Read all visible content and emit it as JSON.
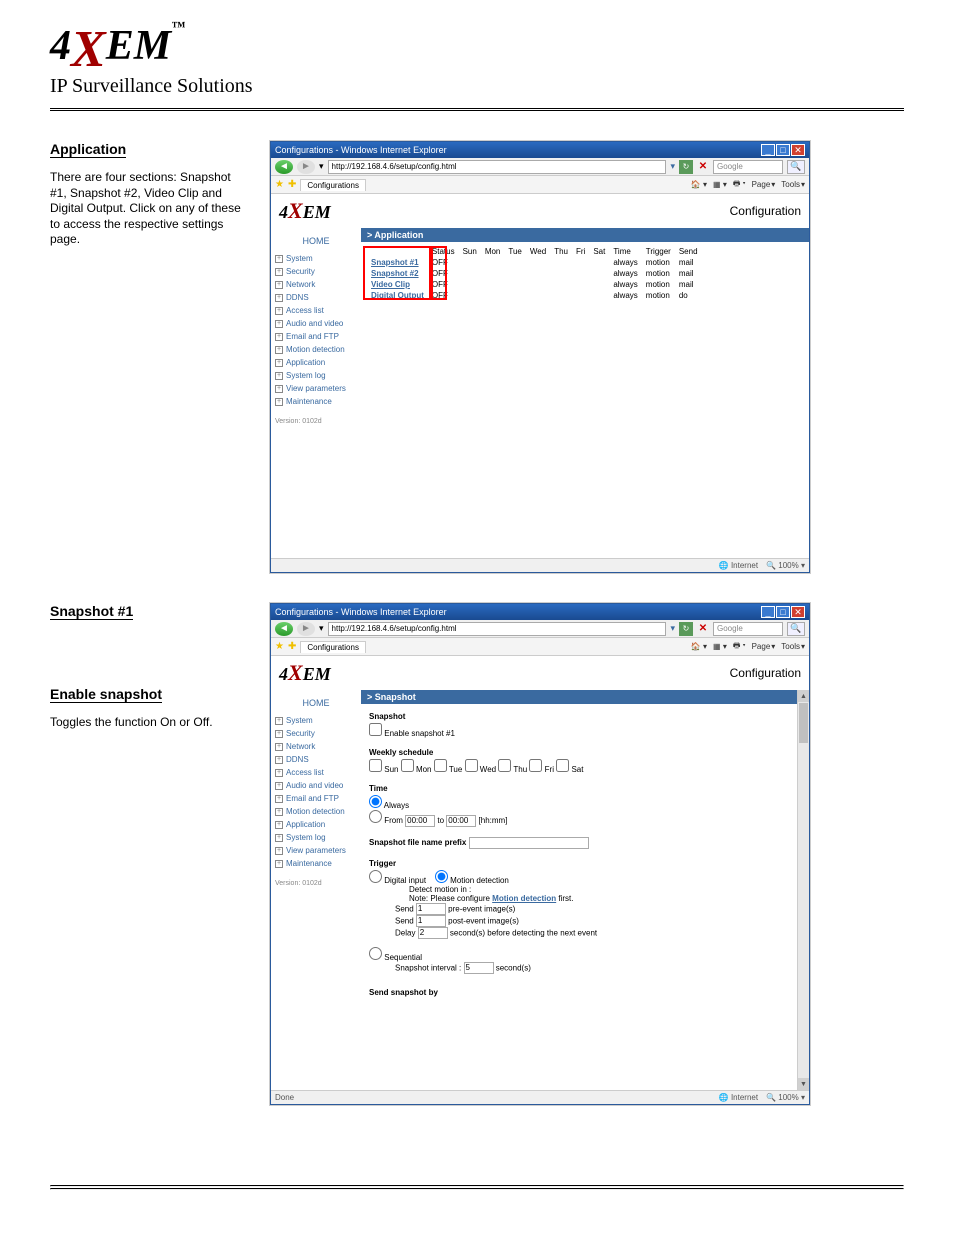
{
  "logo": {
    "pre": "4",
    "x": "X",
    "post": "EM",
    "tm": "™",
    "sub": "IP Surveillance Solutions"
  },
  "section1": {
    "title": "Application",
    "desc": "There are four sections: Snapshot #1, Snapshot #2, Video Clip and Digital Output. Click on any of these to access the respective settings page."
  },
  "section2a": {
    "title": "Snapshot #1"
  },
  "section2b": {
    "title": "Enable snapshot"
  },
  "section2desc": "Toggles the function On or Off.",
  "ie": {
    "title": "Configurations - Windows Internet Explorer",
    "url": "http://192.168.4.6/setup/config.html",
    "search_ph": "Google",
    "tab": "Configurations",
    "tools": {
      "home": "▾",
      "feed": "▾",
      "print": "▾",
      "page": "Page",
      "tools_l": "Tools"
    },
    "brand": {
      "pre": "4",
      "x": "X",
      "post": "EM"
    },
    "conf": "Configuration",
    "sidebar": {
      "home": "HOME",
      "items": [
        "System",
        "Security",
        "Network",
        "DDNS",
        "Access list",
        "Audio and video",
        "Email and FTP",
        "Motion detection",
        "Application",
        "System log",
        "View parameters",
        "Maintenance"
      ],
      "ver": "Version: 0102d"
    },
    "status": {
      "done": "Done",
      "zone": "Internet",
      "zoom": "100%"
    }
  },
  "app": {
    "crumb": "> Application",
    "headers": [
      "",
      "Status",
      "Sun",
      "Mon",
      "Tue",
      "Wed",
      "Thu",
      "Fri",
      "Sat",
      "Time",
      "Trigger",
      "Send"
    ],
    "rows": [
      {
        "name": "Snapshot #1",
        "status": "OFF",
        "time": "always",
        "trigger": "motion",
        "send": "mail"
      },
      {
        "name": "Snapshot #2",
        "status": "OFF",
        "time": "always",
        "trigger": "motion",
        "send": "mail"
      },
      {
        "name": "Video Clip",
        "status": "OFF",
        "time": "always",
        "trigger": "motion",
        "send": "mail"
      },
      {
        "name": "Digital Output",
        "status": "OFF",
        "time": "always",
        "trigger": "motion",
        "send": "do"
      }
    ]
  },
  "snap": {
    "crumb": "> Snapshot",
    "h_snapshot": "Snapshot",
    "cb_enable": "Enable snapshot #1",
    "h_weekly": "Weekly schedule",
    "days": [
      "Sun",
      "Mon",
      "Tue",
      "Wed",
      "Thu",
      "Fri",
      "Sat"
    ],
    "h_time": "Time",
    "r_always": "Always",
    "r_from": "From",
    "t_from": "00:00",
    "to": "to",
    "t_to": "00:00",
    "hhmm": "[hh:mm]",
    "prefix_l": "Snapshot file name prefix",
    "h_trigger": "Trigger",
    "r_di": "Digital input",
    "r_md": "Motion detection",
    "md_in": "Detect motion in :",
    "md_note_pre": "Note: Please configure ",
    "md_link": "Motion detection",
    "md_note_post": " first.",
    "send_l": "Send",
    "pre_ev": "pre-event image(s)",
    "pre_v": "1",
    "post_ev": "post-event image(s)",
    "post_v": "1",
    "delay_l": "Delay",
    "delay_v": "2",
    "delay_t": "second(s) before detecting the next event",
    "r_seq": "Sequential",
    "seq_l": "Snapshot interval :",
    "seq_v": "5",
    "seq_u": "second(s)",
    "h_sendby": "Send snapshot by"
  }
}
